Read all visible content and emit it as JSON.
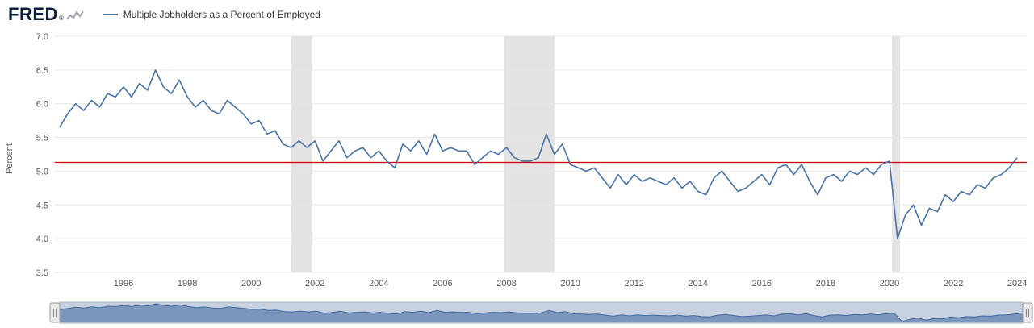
{
  "header": {
    "logo": "FRED",
    "logo_reg": "®",
    "legend": {
      "label": "Multiple Jobholders as a Percent of Employed",
      "color": "#4572a7"
    }
  },
  "chart_data": {
    "type": "line",
    "title": "Multiple Jobholders as a Percent of Employed",
    "xlabel": "",
    "ylabel": "Percent",
    "ylim": [
      3.5,
      7.0
    ],
    "xlim": [
      1993.85,
      2024.3
    ],
    "yticks": [
      7.0,
      6.5,
      6.0,
      5.5,
      5.0,
      4.5,
      4.0,
      3.5
    ],
    "xticks": [
      1996,
      1998,
      2000,
      2002,
      2004,
      2006,
      2008,
      2010,
      2012,
      2014,
      2016,
      2018,
      2020,
      2022,
      2024
    ],
    "grid": true,
    "legend_position": "top-left",
    "colors": {
      "grid": "#e6e6e6",
      "recession": "#e3e3e3"
    },
    "reference_line": {
      "value": 5.13,
      "color": "#d10000"
    },
    "recession_bands": [
      [
        2001.25,
        2001.92
      ],
      [
        2007.92,
        2009.5
      ],
      [
        2020.08,
        2020.33
      ]
    ],
    "series": [
      {
        "name": "Multiple Jobholders as a Percent of Employed",
        "color": "#4572a7",
        "x_start": 1994.0,
        "x_step_years": 0.25,
        "values": [
          5.65,
          5.85,
          6.0,
          5.9,
          6.05,
          5.95,
          6.15,
          6.1,
          6.25,
          6.1,
          6.3,
          6.2,
          6.5,
          6.25,
          6.15,
          6.35,
          6.1,
          5.95,
          6.05,
          5.9,
          5.85,
          6.05,
          5.95,
          5.85,
          5.7,
          5.75,
          5.55,
          5.6,
          5.4,
          5.35,
          5.45,
          5.35,
          5.45,
          5.15,
          5.3,
          5.45,
          5.2,
          5.3,
          5.35,
          5.2,
          5.3,
          5.15,
          5.05,
          5.4,
          5.3,
          5.45,
          5.25,
          5.55,
          5.3,
          5.35,
          5.3,
          5.3,
          5.1,
          5.2,
          5.3,
          5.25,
          5.35,
          5.2,
          5.15,
          5.15,
          5.2,
          5.55,
          5.25,
          5.4,
          5.1,
          5.05,
          5.0,
          5.05,
          4.9,
          4.75,
          4.95,
          4.8,
          4.95,
          4.85,
          4.9,
          4.85,
          4.8,
          4.9,
          4.75,
          4.85,
          4.7,
          4.65,
          4.9,
          5.0,
          4.85,
          4.7,
          4.75,
          4.85,
          4.95,
          4.8,
          5.05,
          5.1,
          4.95,
          5.1,
          4.85,
          4.65,
          4.9,
          4.95,
          4.85,
          5.0,
          4.95,
          5.05,
          4.95,
          5.1,
          5.15,
          4.0,
          4.35,
          4.5,
          4.2,
          4.45,
          4.4,
          4.65,
          4.55,
          4.7,
          4.65,
          4.8,
          4.75,
          4.9,
          4.95,
          5.05,
          5.2
        ]
      }
    ]
  },
  "navigator": {
    "track_color": "#c7d1e0",
    "area_color": "#7b96bd",
    "line_color": "#44689d",
    "handle_color": "#e9e9e9",
    "handle_border": "#999999"
  }
}
